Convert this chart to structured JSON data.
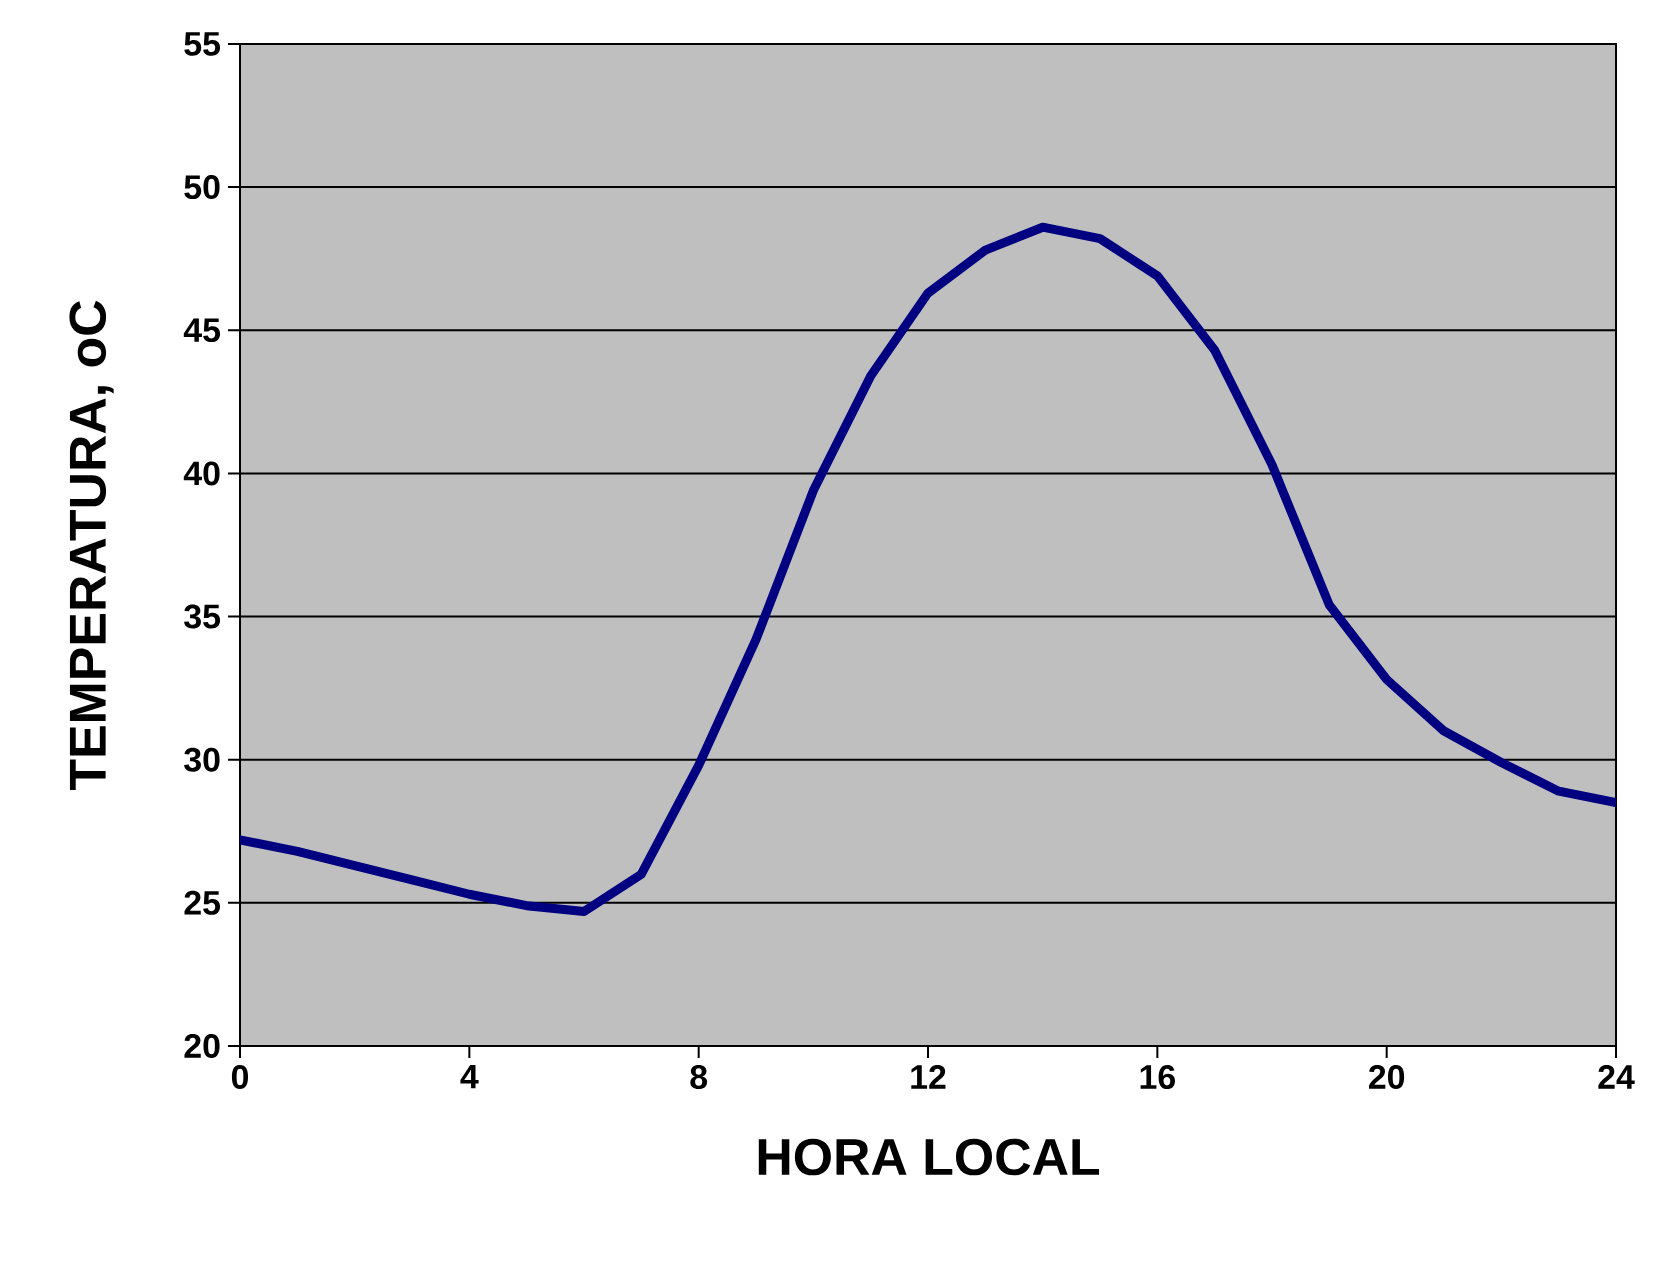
{
  "chart_data": {
    "type": "line",
    "xlabel": "HORA LOCAL",
    "ylabel": "TEMPERATURA, oC",
    "x": [
      0,
      1,
      2,
      3,
      4,
      5,
      6,
      7,
      8,
      9,
      10,
      11,
      12,
      13,
      14,
      15,
      16,
      17,
      18,
      19,
      20,
      21,
      22,
      23,
      24
    ],
    "series": [
      {
        "color": "#000080",
        "values": [
          27.2,
          26.8,
          26.3,
          25.8,
          25.3,
          24.9,
          24.7,
          26.0,
          29.8,
          34.2,
          39.4,
          43.4,
          46.3,
          47.8,
          48.6,
          48.2,
          46.9,
          44.3,
          40.3,
          35.4,
          32.8,
          31.0,
          29.9,
          28.9,
          28.5
        ]
      }
    ],
    "xlim": [
      0,
      24
    ],
    "ylim": [
      20,
      55
    ],
    "xticks": [
      0,
      4,
      8,
      12,
      16,
      20,
      24
    ],
    "yticks": [
      20,
      25,
      30,
      35,
      40,
      45,
      50,
      55
    ],
    "grid": "y",
    "marker": "none",
    "line_style": "solid"
  }
}
